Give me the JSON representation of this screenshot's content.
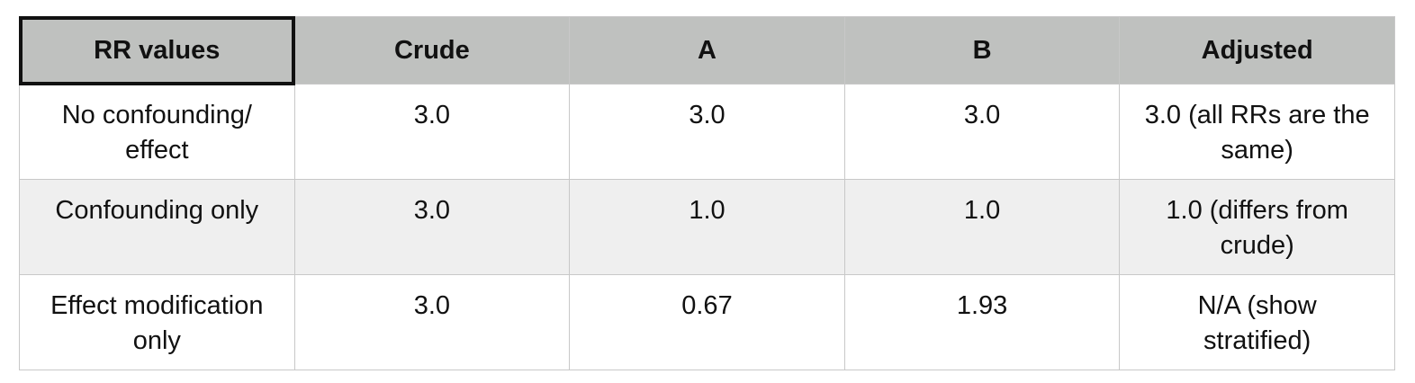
{
  "table": {
    "header": [
      "RR values",
      "Crude",
      "A",
      "B",
      "Adjusted"
    ],
    "rows": [
      [
        "No confounding/ effect",
        "3.0",
        "3.0",
        "3.0",
        "3.0 (all RRs are the same)"
      ],
      [
        "Confounding only",
        "3.0",
        "1.0",
        "1.0",
        "1.0 (differs from crude)"
      ],
      [
        "Effect modification only",
        "3.0",
        "0.67",
        "1.93",
        "N/A (show stratified)"
      ]
    ]
  }
}
